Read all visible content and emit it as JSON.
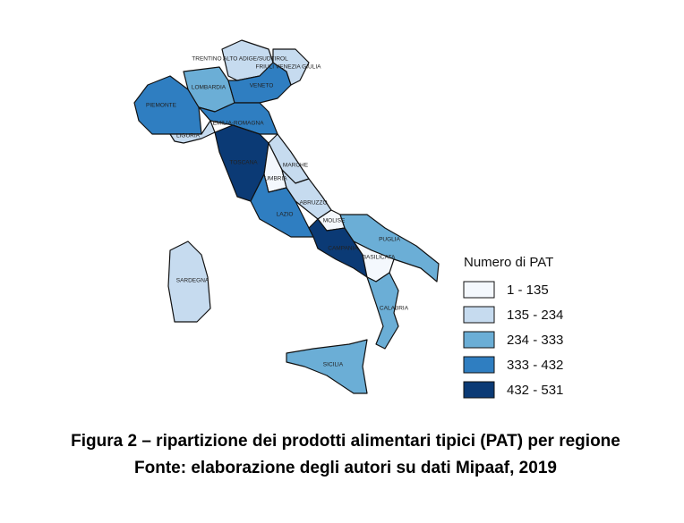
{
  "map": {
    "regions": [
      {
        "name": "PIEMONTE",
        "color": "#2f7ec1"
      },
      {
        "name": "LOMBARDIA",
        "color": "#6baed6"
      },
      {
        "name": "TRENTINO ALTO ADIGE/SUDTIROL",
        "color": "#c6dbef"
      },
      {
        "name": "VENETO",
        "color": "#2f7ec1"
      },
      {
        "name": "FRIULI VENEZIA GIULIA",
        "color": "#c6dbef"
      },
      {
        "name": "EMILIA-ROMAGNA",
        "color": "#2f7ec1"
      },
      {
        "name": "LIGURIA",
        "color": "#c6dbef"
      },
      {
        "name": "TOSCANA",
        "color": "#0b3a75"
      },
      {
        "name": "MARCHE",
        "color": "#c6dbef"
      },
      {
        "name": "UMBRIA",
        "color": "#f4f8fd"
      },
      {
        "name": "LAZIO",
        "color": "#2f7ec1"
      },
      {
        "name": "ABRUZZO",
        "color": "#c6dbef"
      },
      {
        "name": "MOLISE",
        "color": "#f4f8fd"
      },
      {
        "name": "CAMPANIA",
        "color": "#0b3a75"
      },
      {
        "name": "PUGLIA",
        "color": "#6baed6"
      },
      {
        "name": "BASILICATA",
        "color": "#f4f8fd"
      },
      {
        "name": "CALABRIA",
        "color": "#6baed6"
      },
      {
        "name": "SICILIA",
        "color": "#6baed6"
      },
      {
        "name": "SARDEGNA",
        "color": "#c6dbef"
      }
    ],
    "legend": {
      "title": "Numero di PAT",
      "items": [
        {
          "label": "1 - 135",
          "color": "#f4f8fd"
        },
        {
          "label": "135 - 234",
          "color": "#c6dbef"
        },
        {
          "label": "234 - 333",
          "color": "#6baed6"
        },
        {
          "label": "333 - 432",
          "color": "#2f7ec1"
        },
        {
          "label": "432 - 531",
          "color": "#0b3a75"
        }
      ]
    },
    "caption": [
      "Figura 2 – ripartizione dei prodotti alimentari tipici (PAT) per regione",
      "Fonte: elaborazione degli autori su dati Mipaaf, 2019"
    ]
  }
}
